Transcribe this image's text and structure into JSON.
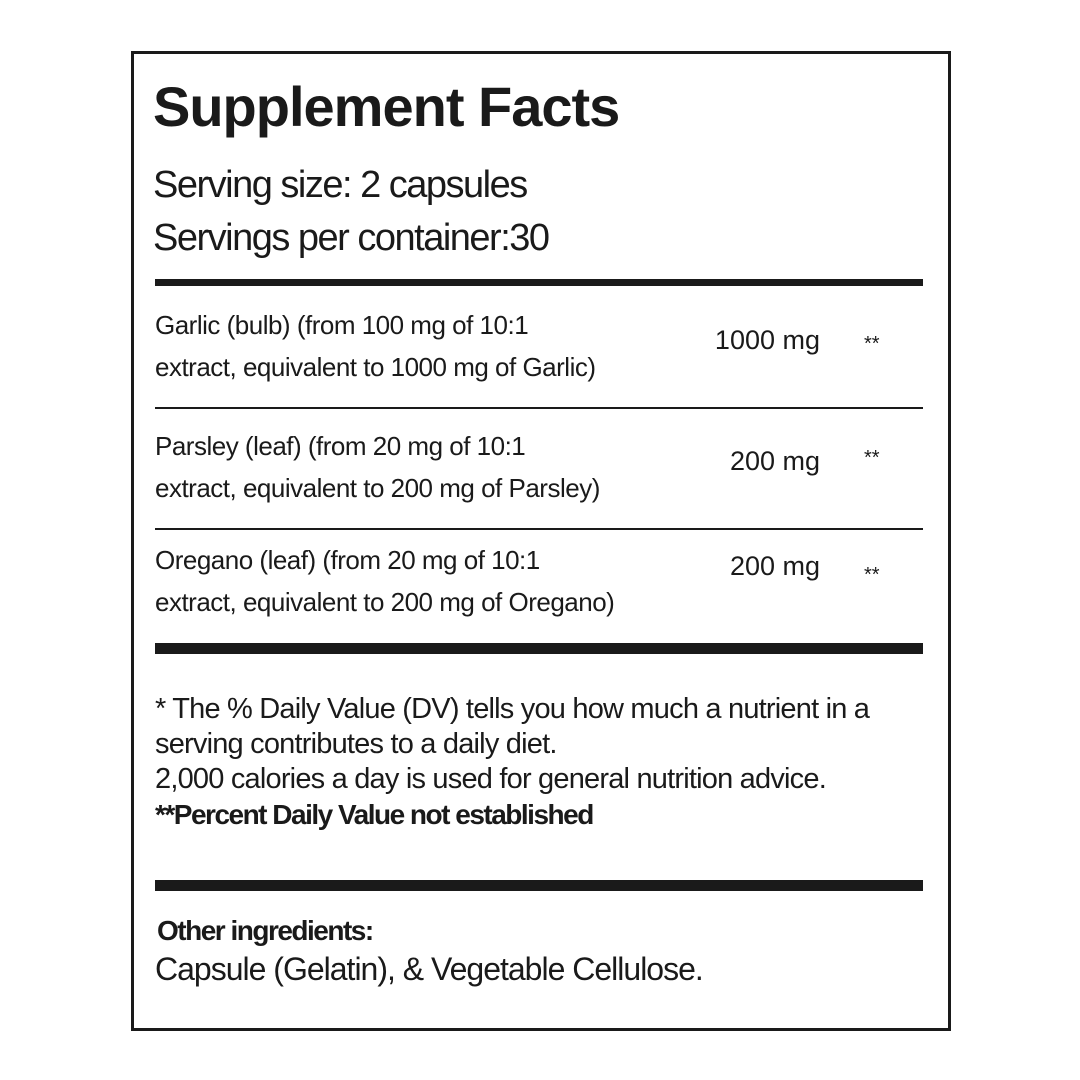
{
  "title": "Supplement Facts",
  "serving_size": "Serving size: 2 capsules",
  "servings_per_container": "Servings per container:30",
  "ingredients": [
    {
      "line1": "Garlic   (bulb) (from 100 mg of 10:1",
      "line2": "extract, equivalent to 1000 mg of Garlic)",
      "amount": "1000 mg",
      "dv": "**"
    },
    {
      "line1": "Parsley   (leaf) (from 20 mg of 10:1",
      "line2": "extract, equivalent to 200 mg of Parsley)",
      "amount": "200 mg",
      "dv": "**"
    },
    {
      "line1": "Oregano    (leaf) (from 20 mg of 10:1",
      "line2": "extract, equivalent to 200 mg of Oregano)",
      "amount": "200 mg",
      "dv": "**"
    }
  ],
  "footnote": {
    "line1": "* The % Daily Value (DV) tells you how much a nutrient in a",
    "line2": "serving contributes to a daily diet.",
    "line3": "2,000 calories a day is used for general nutrition advice.",
    "line4": "**Percent Daily Value not established"
  },
  "other": {
    "label": "Other  ingredients:",
    "value": "Capsule (Gelatin), & Vegetable Cellulose."
  }
}
